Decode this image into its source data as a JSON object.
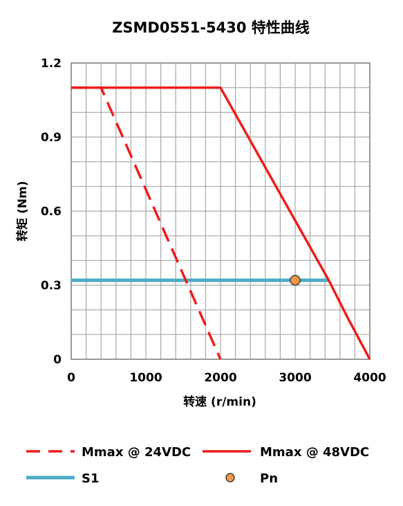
{
  "chart_data": {
    "type": "line",
    "title": "ZSMD0551-5430 特性曲线",
    "xlabel": "转速 (r/min)",
    "ylabel": "转矩 (Nm)",
    "xlim": [
      0,
      4000
    ],
    "ylim": [
      0,
      1.2
    ],
    "x_ticks": [
      "0",
      "1000",
      "2000",
      "3000",
      "4000"
    ],
    "y_ticks": [
      "0",
      "0.3",
      "0.6",
      "0.9",
      "1.2"
    ],
    "grid": true,
    "legend_position": "bottom",
    "series": [
      {
        "name": "Mmax @ 24VDC",
        "style": "dashed",
        "color": "#ee1c1c",
        "x": [
          0,
          400,
          2000
        ],
        "y": [
          1.1,
          1.1,
          0
        ]
      },
      {
        "name": "Mmax @ 48VDC",
        "style": "solid",
        "color": "#ee1c1c",
        "x": [
          0,
          2000,
          3450,
          3700,
          4000
        ],
        "y": [
          1.1,
          1.1,
          0.32,
          0.17,
          0
        ]
      },
      {
        "name": "S1",
        "style": "solid",
        "color": "#4bacc6",
        "x": [
          0,
          3450
        ],
        "y": [
          0.32,
          0.32
        ]
      },
      {
        "name": "Pn",
        "style": "marker",
        "color": "#f79646",
        "x": [
          3000
        ],
        "y": [
          0.32
        ]
      }
    ]
  }
}
